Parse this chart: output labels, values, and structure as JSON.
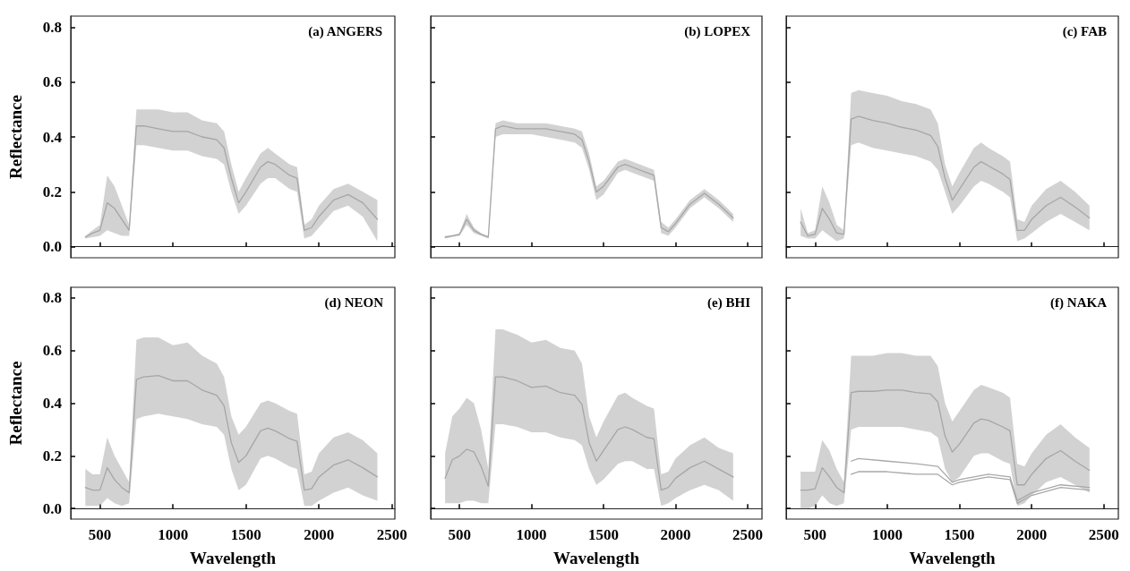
{
  "chart_data": [
    {
      "type": "line",
      "title": "(a) ANGERS",
      "ylabel": "Reflectance",
      "tick_labels": "y",
      "xlim": [
        300,
        2520
      ],
      "xticks": [
        {
          "value": 500,
          "label": null
        },
        {
          "value": 1000,
          "label": null
        },
        {
          "value": 1500,
          "label": null
        },
        {
          "value": 2000,
          "label": null
        },
        {
          "value": 2500,
          "label": null
        }
      ],
      "ylim": [
        -0.04,
        0.84
      ],
      "yticks": [
        {
          "value": 0,
          "label": "0.0"
        },
        {
          "value": 0.2,
          "label": "0.2"
        },
        {
          "value": 0.4,
          "label": "0.4"
        },
        {
          "value": 0.6,
          "label": "0.6"
        },
        {
          "value": 0.8,
          "label": "0.8"
        }
      ],
      "x": [
        400,
        450,
        500,
        550,
        600,
        650,
        700,
        750,
        800,
        900,
        1000,
        1100,
        1200,
        1300,
        1350,
        1400,
        1450,
        1500,
        1600,
        1650,
        1700,
        1800,
        1850,
        1900,
        1950,
        2000,
        2100,
        2200,
        2300,
        2400
      ],
      "series": [
        {
          "color": "#a6a6a6",
          "values": [
            0.035,
            0.05,
            0.06,
            0.16,
            0.14,
            0.1,
            0.06,
            0.44,
            0.44,
            0.43,
            0.42,
            0.42,
            0.4,
            0.39,
            0.36,
            0.25,
            0.16,
            0.2,
            0.29,
            0.31,
            0.3,
            0.26,
            0.25,
            0.06,
            0.07,
            0.11,
            0.17,
            0.19,
            0.16,
            0.1
          ],
          "upper": [
            0.04,
            0.06,
            0.08,
            0.26,
            0.22,
            0.15,
            0.08,
            0.5,
            0.5,
            0.5,
            0.49,
            0.49,
            0.46,
            0.45,
            0.42,
            0.3,
            0.2,
            0.25,
            0.34,
            0.36,
            0.34,
            0.3,
            0.29,
            0.08,
            0.1,
            0.15,
            0.21,
            0.23,
            0.2,
            0.17
          ],
          "lower": [
            0.03,
            0.035,
            0.04,
            0.06,
            0.05,
            0.04,
            0.04,
            0.37,
            0.37,
            0.36,
            0.35,
            0.35,
            0.33,
            0.32,
            0.3,
            0.2,
            0.12,
            0.15,
            0.23,
            0.25,
            0.25,
            0.21,
            0.2,
            0.03,
            0.04,
            0.07,
            0.13,
            0.15,
            0.11,
            0.02
          ]
        }
      ]
    },
    {
      "type": "line",
      "title": "(b) LOPEX",
      "tick_labels": false,
      "xlim": [
        300,
        2600
      ],
      "xticks": [
        {
          "value": 500,
          "label": null
        },
        {
          "value": 1000,
          "label": null
        },
        {
          "value": 1500,
          "label": null
        },
        {
          "value": 2000,
          "label": null
        },
        {
          "value": 2500,
          "label": null
        }
      ],
      "ylim": [
        -0.04,
        0.84
      ],
      "yticks": [
        {
          "value": 0,
          "label": null
        },
        {
          "value": 0.2,
          "label": null
        },
        {
          "value": 0.4,
          "label": null
        },
        {
          "value": 0.6,
          "label": null
        },
        {
          "value": 0.8,
          "label": null
        }
      ],
      "x": [
        400,
        450,
        500,
        550,
        600,
        650,
        700,
        750,
        800,
        900,
        1000,
        1100,
        1200,
        1300,
        1350,
        1400,
        1450,
        1500,
        1600,
        1650,
        1700,
        1800,
        1850,
        1900,
        1950,
        2000,
        2100,
        2200,
        2300,
        2400
      ],
      "series": [
        {
          "color": "#a6a6a6",
          "values": [
            0.035,
            0.04,
            0.045,
            0.1,
            0.06,
            0.045,
            0.035,
            0.43,
            0.44,
            0.43,
            0.43,
            0.43,
            0.42,
            0.41,
            0.39,
            0.31,
            0.2,
            0.22,
            0.29,
            0.3,
            0.29,
            0.27,
            0.26,
            0.07,
            0.055,
            0.085,
            0.155,
            0.195,
            0.155,
            0.105
          ],
          "upper": [
            0.04,
            0.04,
            0.05,
            0.12,
            0.07,
            0.05,
            0.04,
            0.45,
            0.46,
            0.45,
            0.45,
            0.45,
            0.44,
            0.43,
            0.42,
            0.34,
            0.22,
            0.24,
            0.31,
            0.32,
            0.31,
            0.29,
            0.28,
            0.09,
            0.07,
            0.1,
            0.17,
            0.21,
            0.17,
            0.12
          ],
          "lower": [
            0.03,
            0.035,
            0.04,
            0.08,
            0.05,
            0.04,
            0.03,
            0.4,
            0.41,
            0.41,
            0.41,
            0.4,
            0.39,
            0.38,
            0.36,
            0.28,
            0.17,
            0.19,
            0.27,
            0.28,
            0.27,
            0.25,
            0.24,
            0.05,
            0.04,
            0.07,
            0.14,
            0.18,
            0.14,
            0.09
          ]
        }
      ]
    },
    {
      "type": "line",
      "title": "(c) FAB",
      "tick_labels": false,
      "xlim": [
        300,
        2600
      ],
      "xticks": [
        {
          "value": 500,
          "label": null
        },
        {
          "value": 1000,
          "label": null
        },
        {
          "value": 1500,
          "label": null
        },
        {
          "value": 2000,
          "label": null
        },
        {
          "value": 2500,
          "label": null
        }
      ],
      "ylim": [
        -0.04,
        0.84
      ],
      "yticks": [
        {
          "value": 0,
          "label": null
        },
        {
          "value": 0.2,
          "label": null
        },
        {
          "value": 0.4,
          "label": null
        },
        {
          "value": 0.6,
          "label": null
        },
        {
          "value": 0.8,
          "label": null
        }
      ],
      "x": [
        400,
        450,
        500,
        550,
        600,
        650,
        700,
        750,
        800,
        900,
        1000,
        1100,
        1200,
        1300,
        1350,
        1400,
        1450,
        1500,
        1600,
        1650,
        1700,
        1800,
        1850,
        1900,
        1950,
        2000,
        2100,
        2200,
        2300,
        2400
      ],
      "series": [
        {
          "color": "#a6a6a6",
          "values": [
            0.09,
            0.04,
            0.045,
            0.14,
            0.1,
            0.05,
            0.045,
            0.465,
            0.475,
            0.46,
            0.45,
            0.435,
            0.425,
            0.405,
            0.365,
            0.25,
            0.17,
            0.21,
            0.29,
            0.31,
            0.295,
            0.265,
            0.245,
            0.06,
            0.06,
            0.1,
            0.15,
            0.18,
            0.145,
            0.105
          ],
          "upper": [
            0.14,
            0.05,
            0.06,
            0.22,
            0.16,
            0.08,
            0.06,
            0.56,
            0.57,
            0.56,
            0.55,
            0.53,
            0.52,
            0.5,
            0.45,
            0.3,
            0.22,
            0.27,
            0.36,
            0.38,
            0.36,
            0.33,
            0.31,
            0.1,
            0.09,
            0.15,
            0.21,
            0.24,
            0.2,
            0.15
          ],
          "lower": [
            0.04,
            0.03,
            0.03,
            0.06,
            0.04,
            0.02,
            0.03,
            0.37,
            0.38,
            0.36,
            0.35,
            0.34,
            0.33,
            0.31,
            0.28,
            0.2,
            0.12,
            0.15,
            0.22,
            0.24,
            0.23,
            0.2,
            0.18,
            0.02,
            0.03,
            0.05,
            0.09,
            0.12,
            0.09,
            0.06
          ]
        }
      ]
    },
    {
      "type": "line",
      "title": "(d) NEON",
      "ylabel": "Reflectance",
      "xlabel": "Wavelength",
      "xlim": [
        300,
        2520
      ],
      "xticks": [
        500,
        1000,
        1500,
        2000,
        2500
      ],
      "ylim": [
        -0.04,
        0.84
      ],
      "yticks": [
        {
          "value": 0,
          "label": "0.0"
        },
        {
          "value": 0.2,
          "label": "0.2"
        },
        {
          "value": 0.4,
          "label": "0.4"
        },
        {
          "value": 0.6,
          "label": "0.6"
        },
        {
          "value": 0.8,
          "label": "0.8"
        }
      ],
      "x": [
        400,
        450,
        500,
        550,
        600,
        650,
        700,
        750,
        800,
        900,
        1000,
        1100,
        1200,
        1300,
        1350,
        1400,
        1450,
        1500,
        1600,
        1650,
        1700,
        1800,
        1850,
        1900,
        1950,
        2000,
        2100,
        2200,
        2300,
        2400
      ],
      "series": [
        {
          "color": "#a6a6a6",
          "values": [
            0.08,
            0.07,
            0.07,
            0.155,
            0.11,
            0.08,
            0.06,
            0.49,
            0.5,
            0.505,
            0.485,
            0.485,
            0.45,
            0.43,
            0.39,
            0.25,
            0.175,
            0.2,
            0.295,
            0.305,
            0.295,
            0.265,
            0.255,
            0.07,
            0.075,
            0.12,
            0.165,
            0.185,
            0.155,
            0.12
          ],
          "upper": [
            0.15,
            0.13,
            0.13,
            0.27,
            0.2,
            0.15,
            0.1,
            0.64,
            0.65,
            0.65,
            0.62,
            0.63,
            0.58,
            0.55,
            0.5,
            0.35,
            0.28,
            0.31,
            0.4,
            0.41,
            0.4,
            0.37,
            0.36,
            0.13,
            0.14,
            0.21,
            0.27,
            0.29,
            0.26,
            0.21
          ],
          "lower": [
            0.01,
            0.01,
            0.01,
            0.04,
            0.02,
            0.01,
            0.02,
            0.34,
            0.35,
            0.36,
            0.35,
            0.34,
            0.32,
            0.31,
            0.28,
            0.15,
            0.07,
            0.09,
            0.19,
            0.2,
            0.19,
            0.16,
            0.15,
            0.01,
            0.01,
            0.03,
            0.06,
            0.08,
            0.05,
            0.03
          ]
        }
      ]
    },
    {
      "type": "line",
      "title": "(e) BHI",
      "xlabel": "Wavelength",
      "tick_labels": "x",
      "xlim": [
        300,
        2600
      ],
      "xticks": [
        500,
        1000,
        1500,
        2000,
        2500
      ],
      "ylim": [
        -0.04,
        0.84
      ],
      "yticks": [
        {
          "value": 0,
          "label": null
        },
        {
          "value": 0.2,
          "label": null
        },
        {
          "value": 0.4,
          "label": null
        },
        {
          "value": 0.6,
          "label": null
        },
        {
          "value": 0.8,
          "label": null
        }
      ],
      "x": [
        400,
        450,
        500,
        550,
        600,
        650,
        700,
        750,
        800,
        900,
        1000,
        1100,
        1200,
        1300,
        1350,
        1400,
        1450,
        1500,
        1600,
        1650,
        1700,
        1800,
        1850,
        1900,
        1950,
        2000,
        2100,
        2200,
        2300,
        2400
      ],
      "series": [
        {
          "color": "#a6a6a6",
          "values": [
            0.115,
            0.185,
            0.2,
            0.225,
            0.215,
            0.16,
            0.085,
            0.5,
            0.5,
            0.485,
            0.46,
            0.465,
            0.44,
            0.43,
            0.395,
            0.25,
            0.18,
            0.22,
            0.3,
            0.31,
            0.3,
            0.27,
            0.265,
            0.07,
            0.08,
            0.115,
            0.155,
            0.18,
            0.15,
            0.12
          ],
          "upper": [
            0.21,
            0.35,
            0.38,
            0.42,
            0.4,
            0.3,
            0.15,
            0.68,
            0.68,
            0.66,
            0.63,
            0.64,
            0.61,
            0.6,
            0.55,
            0.35,
            0.27,
            0.33,
            0.43,
            0.44,
            0.42,
            0.39,
            0.38,
            0.13,
            0.14,
            0.19,
            0.24,
            0.27,
            0.23,
            0.21
          ],
          "lower": [
            0.02,
            0.02,
            0.02,
            0.03,
            0.03,
            0.02,
            0.02,
            0.32,
            0.32,
            0.31,
            0.29,
            0.29,
            0.27,
            0.26,
            0.24,
            0.15,
            0.09,
            0.11,
            0.17,
            0.18,
            0.18,
            0.15,
            0.15,
            0.01,
            0.02,
            0.04,
            0.07,
            0.09,
            0.07,
            0.03
          ]
        }
      ]
    },
    {
      "type": "line",
      "title": "(f) NAKA",
      "xlabel": "Wavelength",
      "tick_labels": "x",
      "xlim": [
        300,
        2600
      ],
      "xticks": [
        500,
        1000,
        1500,
        2000,
        2500
      ],
      "ylim": [
        -0.04,
        0.84
      ],
      "yticks": [
        {
          "value": 0,
          "label": null
        },
        {
          "value": 0.2,
          "label": null
        },
        {
          "value": 0.4,
          "label": null
        },
        {
          "value": 0.6,
          "label": null
        },
        {
          "value": 0.8,
          "label": null
        }
      ],
      "x": [
        400,
        450,
        500,
        550,
        600,
        650,
        700,
        750,
        800,
        900,
        1000,
        1100,
        1200,
        1300,
        1350,
        1400,
        1450,
        1500,
        1600,
        1650,
        1700,
        1800,
        1850,
        1900,
        1950,
        2000,
        2100,
        2200,
        2300,
        2400
      ],
      "series": [
        {
          "color": "#a6a6a6",
          "values": [
            0.07,
            0.07,
            0.075,
            0.155,
            0.12,
            0.08,
            0.06,
            0.44,
            0.445,
            0.445,
            0.45,
            0.45,
            0.44,
            0.435,
            0.405,
            0.275,
            0.215,
            0.245,
            0.325,
            0.34,
            0.335,
            0.31,
            0.295,
            0.09,
            0.09,
            0.13,
            0.19,
            0.22,
            0.18,
            0.145
          ],
          "upper": [
            0.14,
            0.14,
            0.14,
            0.26,
            0.22,
            0.15,
            0.1,
            0.58,
            0.58,
            0.58,
            0.59,
            0.59,
            0.58,
            0.58,
            0.54,
            0.4,
            0.33,
            0.37,
            0.45,
            0.47,
            0.46,
            0.44,
            0.42,
            0.17,
            0.16,
            0.21,
            0.28,
            0.32,
            0.27,
            0.23
          ],
          "lower": [
            0.0,
            0.0,
            0.01,
            0.05,
            0.02,
            0.01,
            0.02,
            0.3,
            0.31,
            0.31,
            0.31,
            0.31,
            0.3,
            0.29,
            0.27,
            0.15,
            0.1,
            0.12,
            0.2,
            0.21,
            0.21,
            0.18,
            0.17,
            0.01,
            0.02,
            0.05,
            0.1,
            0.12,
            0.09,
            0.06
          ]
        },
        {
          "color": "#a8a8a8",
          "x": [
            750,
            800,
            1000,
            1200,
            1350,
            1450,
            1500,
            1700,
            1850,
            1900,
            2000,
            2200,
            2400
          ],
          "values": [
            0.18,
            0.19,
            0.18,
            0.17,
            0.16,
            0.1,
            0.11,
            0.13,
            0.12,
            0.03,
            0.06,
            0.09,
            0.08
          ]
        },
        {
          "color": "#a8a8a8",
          "x": [
            750,
            800,
            1000,
            1200,
            1350,
            1450,
            1500,
            1700,
            1850,
            1900,
            2000,
            2200,
            2400
          ],
          "values": [
            0.13,
            0.14,
            0.14,
            0.13,
            0.13,
            0.09,
            0.1,
            0.12,
            0.11,
            0.02,
            0.05,
            0.08,
            0.07
          ]
        }
      ]
    }
  ]
}
